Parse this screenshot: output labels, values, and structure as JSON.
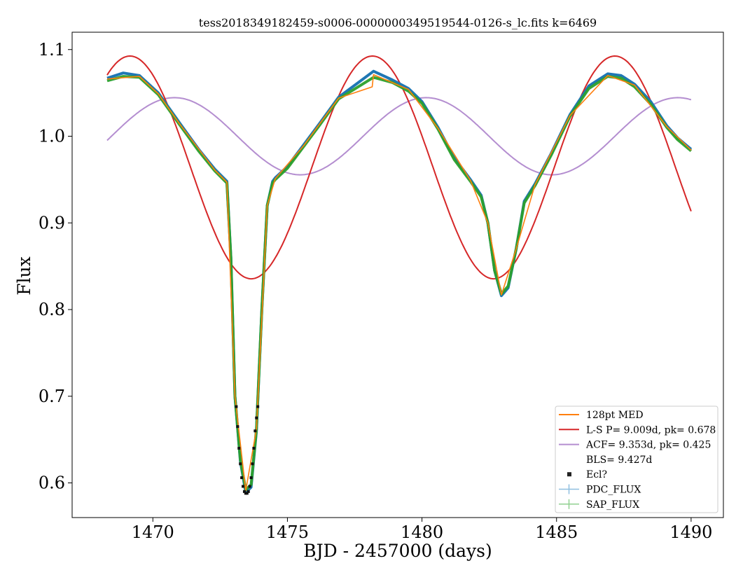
{
  "chart_data": {
    "type": "line",
    "title": "tess2018349182459-s0006-0000000349519544-0126-s_lc.fits k=6469",
    "xlabel": "BJD - 2457000 (days)",
    "ylabel": "Flux",
    "xlim": [
      1467.0,
      1491.2
    ],
    "ylim": [
      0.56,
      1.12
    ],
    "xticks": [
      1470,
      1475,
      1480,
      1485,
      1490
    ],
    "xtick_labels": [
      "1470",
      "1475",
      "1480",
      "1485",
      "1490"
    ],
    "yticks": [
      0.6,
      0.7,
      0.8,
      0.9,
      1.0,
      1.1
    ],
    "ytick_labels": [
      "0.6",
      "0.7",
      "0.8",
      "0.9",
      "1.0",
      "1.1"
    ],
    "grid": false,
    "legend_position": "lower right",
    "legend": [
      {
        "label": "128pt MED",
        "color": "#ff7f0e",
        "style": "line"
      },
      {
        "label": "L-S P= 9.009d, pk= 0.678",
        "color": "#d62728",
        "style": "line"
      },
      {
        "label": "ACF= 9.353d, pk= 0.425",
        "color": "#b48ed0",
        "style": "line"
      },
      {
        "label": "BLS= 9.427d",
        "color": "none",
        "style": "none"
      },
      {
        "label": "Ecl?",
        "color": "#222222",
        "style": "marker"
      },
      {
        "label": "PDC_FLUX",
        "color": "#8fbfe0",
        "style": "errorbar"
      },
      {
        "label": "SAP_FLUX",
        "color": "#90d090",
        "style": "errorbar"
      }
    ],
    "series": [
      {
        "name": "PDC_FLUX",
        "color": "#1f77b4",
        "x": [
          1468.3,
          1468.9,
          1469.5,
          1470.2,
          1471.0,
          1471.7,
          1472.3,
          1472.75,
          1472.9,
          1473.05,
          1473.25,
          1473.45,
          1473.65,
          1473.85,
          1474.05,
          1474.25,
          1474.45,
          1474.55,
          1475.0,
          1475.6,
          1476.2,
          1476.9,
          1478.2,
          1478.9,
          1479.5,
          1480.0,
          1480.6,
          1481.2,
          1481.8,
          1482.2,
          1482.45,
          1482.7,
          1482.95,
          1483.2,
          1483.5,
          1483.8,
          1484.2,
          1484.8,
          1485.5,
          1486.2,
          1486.9,
          1487.4,
          1487.9,
          1488.5,
          1489.1,
          1489.5,
          1490.0
        ],
        "y": [
          1.067,
          1.073,
          1.07,
          1.05,
          1.015,
          0.985,
          0.962,
          0.948,
          0.86,
          0.7,
          0.625,
          0.589,
          0.595,
          0.66,
          0.8,
          0.92,
          0.948,
          0.952,
          0.965,
          0.99,
          1.015,
          1.045,
          1.075,
          1.065,
          1.055,
          1.04,
          1.01,
          0.975,
          0.95,
          0.932,
          0.9,
          0.845,
          0.816,
          0.825,
          0.87,
          0.925,
          0.945,
          0.98,
          1.025,
          1.058,
          1.072,
          1.07,
          1.06,
          1.04,
          1.012,
          0.998,
          0.985
        ]
      },
      {
        "name": "SAP_FLUX",
        "color": "#2ca02c",
        "x": [
          1468.3,
          1468.9,
          1469.5,
          1470.2,
          1471.0,
          1471.7,
          1472.3,
          1472.75,
          1472.9,
          1473.05,
          1473.25,
          1473.45,
          1473.65,
          1473.85,
          1474.05,
          1474.25,
          1474.45,
          1474.55,
          1475.0,
          1475.6,
          1476.2,
          1476.9,
          1478.2,
          1478.9,
          1479.5,
          1480.0,
          1480.6,
          1481.2,
          1481.8,
          1482.2,
          1482.45,
          1482.7,
          1482.95,
          1483.2,
          1483.5,
          1483.8,
          1484.2,
          1484.8,
          1485.5,
          1486.2,
          1486.9,
          1487.4,
          1487.9,
          1488.5,
          1489.1,
          1489.5,
          1490.0
        ],
        "y": [
          1.064,
          1.069,
          1.068,
          1.048,
          1.013,
          0.983,
          0.96,
          0.946,
          0.86,
          0.7,
          0.627,
          0.592,
          0.598,
          0.662,
          0.8,
          0.92,
          0.946,
          0.95,
          0.963,
          0.988,
          1.013,
          1.043,
          1.068,
          1.062,
          1.052,
          1.038,
          1.008,
          0.973,
          0.948,
          0.93,
          0.9,
          0.845,
          0.818,
          0.827,
          0.87,
          0.923,
          0.943,
          0.978,
          1.023,
          1.055,
          1.069,
          1.067,
          1.057,
          1.037,
          1.01,
          0.996,
          0.983
        ]
      },
      {
        "name": "128pt MED",
        "color": "#ff7f0e",
        "x": [
          1468.3,
          1469.5,
          1470.2,
          1471.0,
          1472.3,
          1472.75,
          1473.05,
          1473.45,
          1473.85,
          1474.25,
          1474.55,
          1475.6,
          1476.9,
          1478.15,
          1478.2,
          1479.5,
          1480.6,
          1481.8,
          1482.45,
          1482.95,
          1483.5,
          1484.2,
          1485.5,
          1486.9,
          1487.9,
          1489.1,
          1490.0
        ],
        "y": [
          1.066,
          1.069,
          1.049,
          1.014,
          0.961,
          0.947,
          0.7,
          0.591,
          0.662,
          0.92,
          0.951,
          0.989,
          1.044,
          1.057,
          1.071,
          1.054,
          1.009,
          0.949,
          0.9,
          0.817,
          0.87,
          0.944,
          1.024,
          1.07,
          1.059,
          1.011,
          0.984
        ]
      },
      {
        "name": "L-S P= 9.009d, pk= 0.678",
        "color": "#d62728",
        "model": "sine",
        "period": 9.009,
        "amplitude": 0.1285,
        "offset": 0.964,
        "peak_x": 1469.15,
        "x_range": [
          1468.3,
          1490.0
        ]
      },
      {
        "name": "ACF= 9.353d, pk= 0.425",
        "color": "#b48ed0",
        "model": "sine",
        "period": 9.353,
        "amplitude": 0.0445,
        "offset": 1.0,
        "peak_x": 1470.8,
        "x_range": [
          1468.3,
          1490.0
        ]
      },
      {
        "name": "Ecl?",
        "color": "#000000",
        "x": [
          1473.1,
          1473.15,
          1473.2,
          1473.25,
          1473.3,
          1473.35,
          1473.4,
          1473.45,
          1473.5,
          1473.55,
          1473.6,
          1473.65,
          1473.7,
          1473.75,
          1473.8,
          1473.85,
          1473.9
        ],
        "y": [
          0.688,
          0.665,
          0.64,
          0.622,
          0.606,
          0.596,
          0.59,
          0.588,
          0.588,
          0.59,
          0.596,
          0.606,
          0.622,
          0.64,
          0.66,
          0.675,
          0.688
        ]
      }
    ]
  }
}
